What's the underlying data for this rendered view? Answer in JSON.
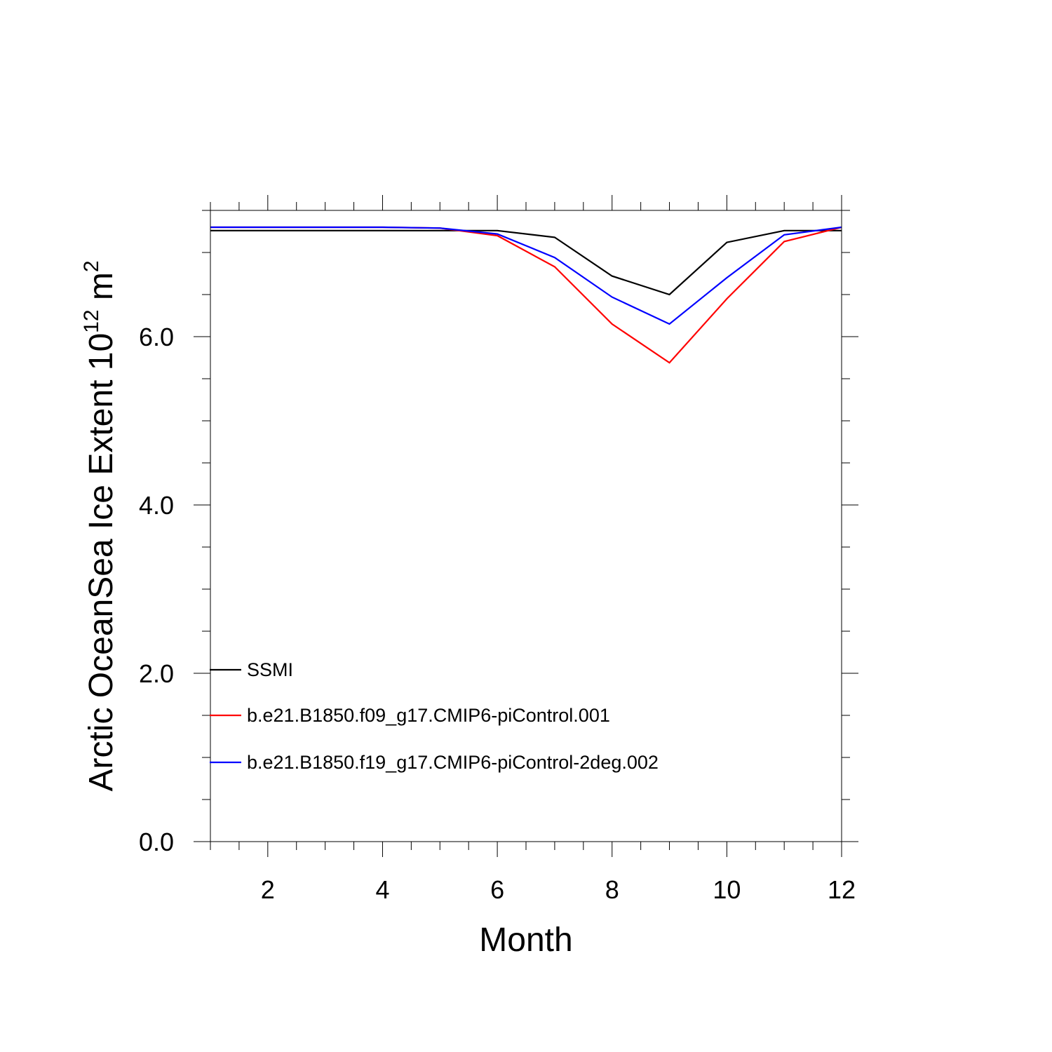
{
  "chart_data": {
    "type": "line",
    "title": "",
    "xlabel": "Month",
    "ylabel": {
      "prefix": "Arctic OceanSea Ice Extent 10",
      "sup1": "12",
      "mid": " m",
      "sup2": "2"
    },
    "xlim": [
      1,
      12
    ],
    "ylim": [
      0,
      7.5
    ],
    "x_ticks": [
      2,
      4,
      6,
      8,
      10,
      12
    ],
    "x_tick_labels": [
      "2",
      "4",
      "6",
      "8",
      "10",
      "12"
    ],
    "y_ticks": [
      0,
      2,
      4,
      6
    ],
    "y_tick_labels": [
      "0.0",
      "2.0",
      "4.0",
      "6.0"
    ],
    "x_minor_step": 0.5,
    "y_minor_step": 0.5,
    "grid": false,
    "legend_position": "lower-left",
    "x": [
      1,
      2,
      3,
      4,
      5,
      6,
      7,
      8,
      9,
      10,
      11,
      12
    ],
    "series": [
      {
        "name": "SSMI",
        "color": "#000000",
        "values": [
          7.26,
          7.26,
          7.26,
          7.26,
          7.26,
          7.26,
          7.18,
          6.72,
          6.5,
          7.12,
          7.26,
          7.26
        ]
      },
      {
        "name": "b.e21.B1850.f09_g17.CMIP6-piControl.001",
        "color": "#ff0000",
        "values": [
          7.3,
          7.3,
          7.3,
          7.3,
          7.29,
          7.2,
          6.83,
          6.15,
          5.69,
          6.45,
          7.13,
          7.3
        ]
      },
      {
        "name": "b.e21.B1850.f19_g17.CMIP6-piControl-2deg.002",
        "color": "#0000ff",
        "values": [
          7.3,
          7.3,
          7.3,
          7.3,
          7.29,
          7.22,
          6.94,
          6.47,
          6.15,
          6.7,
          7.21,
          7.3
        ]
      }
    ]
  }
}
